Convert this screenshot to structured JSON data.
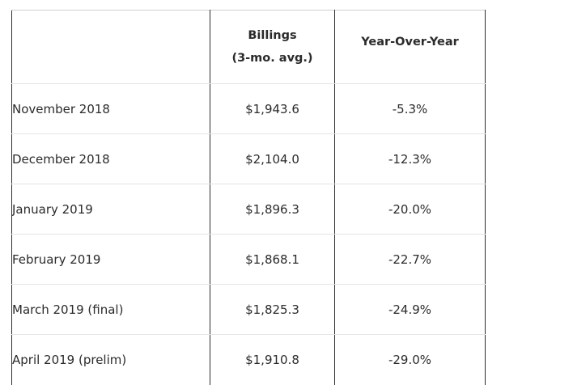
{
  "table": {
    "headers": {
      "billings_title": "Billings",
      "billings_sub": "(3-mo. avg.)",
      "yoy": "Year-Over-Year"
    },
    "rows": [
      {
        "month": "November 2018",
        "billings": "$1,943.6",
        "yoy": "-5.3%"
      },
      {
        "month": "December 2018",
        "billings": "$2,104.0",
        "yoy": "-12.3%"
      },
      {
        "month": "January 2019",
        "billings": "$1,896.3",
        "yoy": "-20.0%"
      },
      {
        "month": "February 2019",
        "billings": "$1,868.1",
        "yoy": "-22.7%"
      },
      {
        "month": "March 2019 (final)",
        "billings": "$1,825.3",
        "yoy": "-24.9%"
      },
      {
        "month": "April 2019 (prelim)",
        "billings": "$1,910.8",
        "yoy": "-29.0%"
      }
    ]
  }
}
